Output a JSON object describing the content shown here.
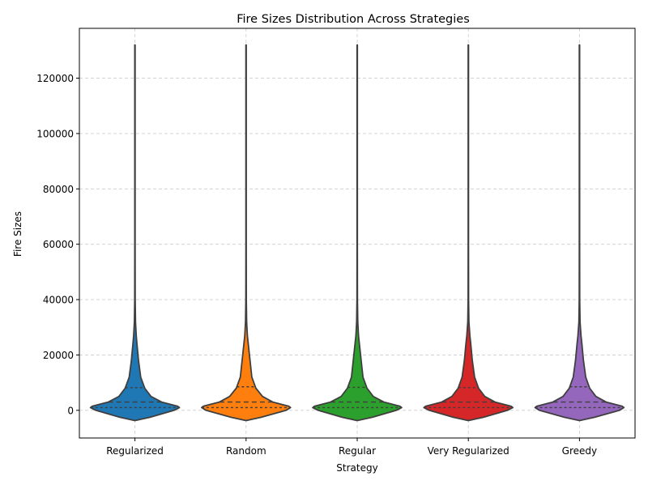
{
  "chart_data": {
    "type": "violin",
    "title": "Fire Sizes Distribution Across Strategies",
    "xlabel": "Strategy",
    "ylabel": "Fire Sizes",
    "ylim": [
      -10000,
      138000
    ],
    "yticks": [
      0,
      20000,
      40000,
      60000,
      80000,
      100000,
      120000
    ],
    "ytick_labels": [
      "0",
      "20000",
      "40000",
      "60000",
      "80000",
      "100000",
      "120000"
    ],
    "grid": true,
    "legend": "none",
    "inner": "quartile",
    "categories": [
      "Regularized",
      "Random",
      "Regular",
      "Very Regularized",
      "Greedy"
    ],
    "colors": [
      "#1f77b4",
      "#ff7f0e",
      "#2ca02c",
      "#d62728",
      "#9467bd"
    ],
    "series": [
      {
        "category": "Regularized",
        "min": -3700,
        "q1": 1000,
        "median": 3000,
        "q3": 8200,
        "max": 132000,
        "profile": [
          [
            -3700,
            0
          ],
          [
            -2500,
            0.34
          ],
          [
            0,
            0.88
          ],
          [
            1000,
            1.0
          ],
          [
            1500,
            0.96
          ],
          [
            3000,
            0.6
          ],
          [
            5000,
            0.36
          ],
          [
            8000,
            0.22
          ],
          [
            12000,
            0.13
          ],
          [
            18000,
            0.08
          ],
          [
            24000,
            0.045
          ],
          [
            27000,
            0.03
          ],
          [
            32000,
            0.013
          ],
          [
            40000,
            0.006
          ],
          [
            60000,
            0.004
          ],
          [
            132000,
            0.003
          ]
        ]
      },
      {
        "category": "Random",
        "min": -3700,
        "q1": 1000,
        "median": 3000,
        "q3": 8500,
        "max": 132000,
        "profile": [
          [
            -3700,
            0
          ],
          [
            -2500,
            0.34
          ],
          [
            0,
            0.9
          ],
          [
            1000,
            1.0
          ],
          [
            1500,
            0.96
          ],
          [
            3000,
            0.6
          ],
          [
            5000,
            0.37
          ],
          [
            8000,
            0.22
          ],
          [
            12000,
            0.13
          ],
          [
            18000,
            0.09
          ],
          [
            24000,
            0.05
          ],
          [
            27000,
            0.03
          ],
          [
            32000,
            0.012
          ],
          [
            40000,
            0.006
          ],
          [
            60000,
            0.004
          ],
          [
            132000,
            0.003
          ]
        ]
      },
      {
        "category": "Regular",
        "min": -3700,
        "q1": 1000,
        "median": 3000,
        "q3": 8300,
        "max": 132000,
        "profile": [
          [
            -3700,
            0
          ],
          [
            -2500,
            0.34
          ],
          [
            0,
            0.88
          ],
          [
            1000,
            1.0
          ],
          [
            1500,
            0.96
          ],
          [
            3000,
            0.6
          ],
          [
            5000,
            0.36
          ],
          [
            8000,
            0.22
          ],
          [
            12000,
            0.13
          ],
          [
            18000,
            0.09
          ],
          [
            24000,
            0.05
          ],
          [
            27000,
            0.03
          ],
          [
            32000,
            0.012
          ],
          [
            40000,
            0.006
          ],
          [
            60000,
            0.004
          ],
          [
            132000,
            0.003
          ]
        ]
      },
      {
        "category": "Very Regularized",
        "min": -3700,
        "q1": 1000,
        "median": 3000,
        "q3": 8200,
        "max": 132000,
        "profile": [
          [
            -3700,
            0
          ],
          [
            -2500,
            0.34
          ],
          [
            0,
            0.88
          ],
          [
            1000,
            1.0
          ],
          [
            1500,
            0.96
          ],
          [
            3000,
            0.6
          ],
          [
            5000,
            0.37
          ],
          [
            8000,
            0.23
          ],
          [
            12000,
            0.14
          ],
          [
            18000,
            0.09
          ],
          [
            24000,
            0.055
          ],
          [
            27000,
            0.035
          ],
          [
            32000,
            0.013
          ],
          [
            40000,
            0.006
          ],
          [
            60000,
            0.004
          ],
          [
            132000,
            0.003
          ]
        ]
      },
      {
        "category": "Greedy",
        "min": -3700,
        "q1": 1000,
        "median": 3000,
        "q3": 8500,
        "max": 132000,
        "profile": [
          [
            -3700,
            0
          ],
          [
            -2500,
            0.34
          ],
          [
            0,
            0.9
          ],
          [
            1000,
            1.0
          ],
          [
            1500,
            0.96
          ],
          [
            3000,
            0.6
          ],
          [
            5000,
            0.37
          ],
          [
            8000,
            0.23
          ],
          [
            12000,
            0.14
          ],
          [
            18000,
            0.09
          ],
          [
            24000,
            0.055
          ],
          [
            27000,
            0.035
          ],
          [
            32000,
            0.012
          ],
          [
            40000,
            0.006
          ],
          [
            60000,
            0.004
          ],
          [
            132000,
            0.003
          ]
        ]
      }
    ]
  }
}
